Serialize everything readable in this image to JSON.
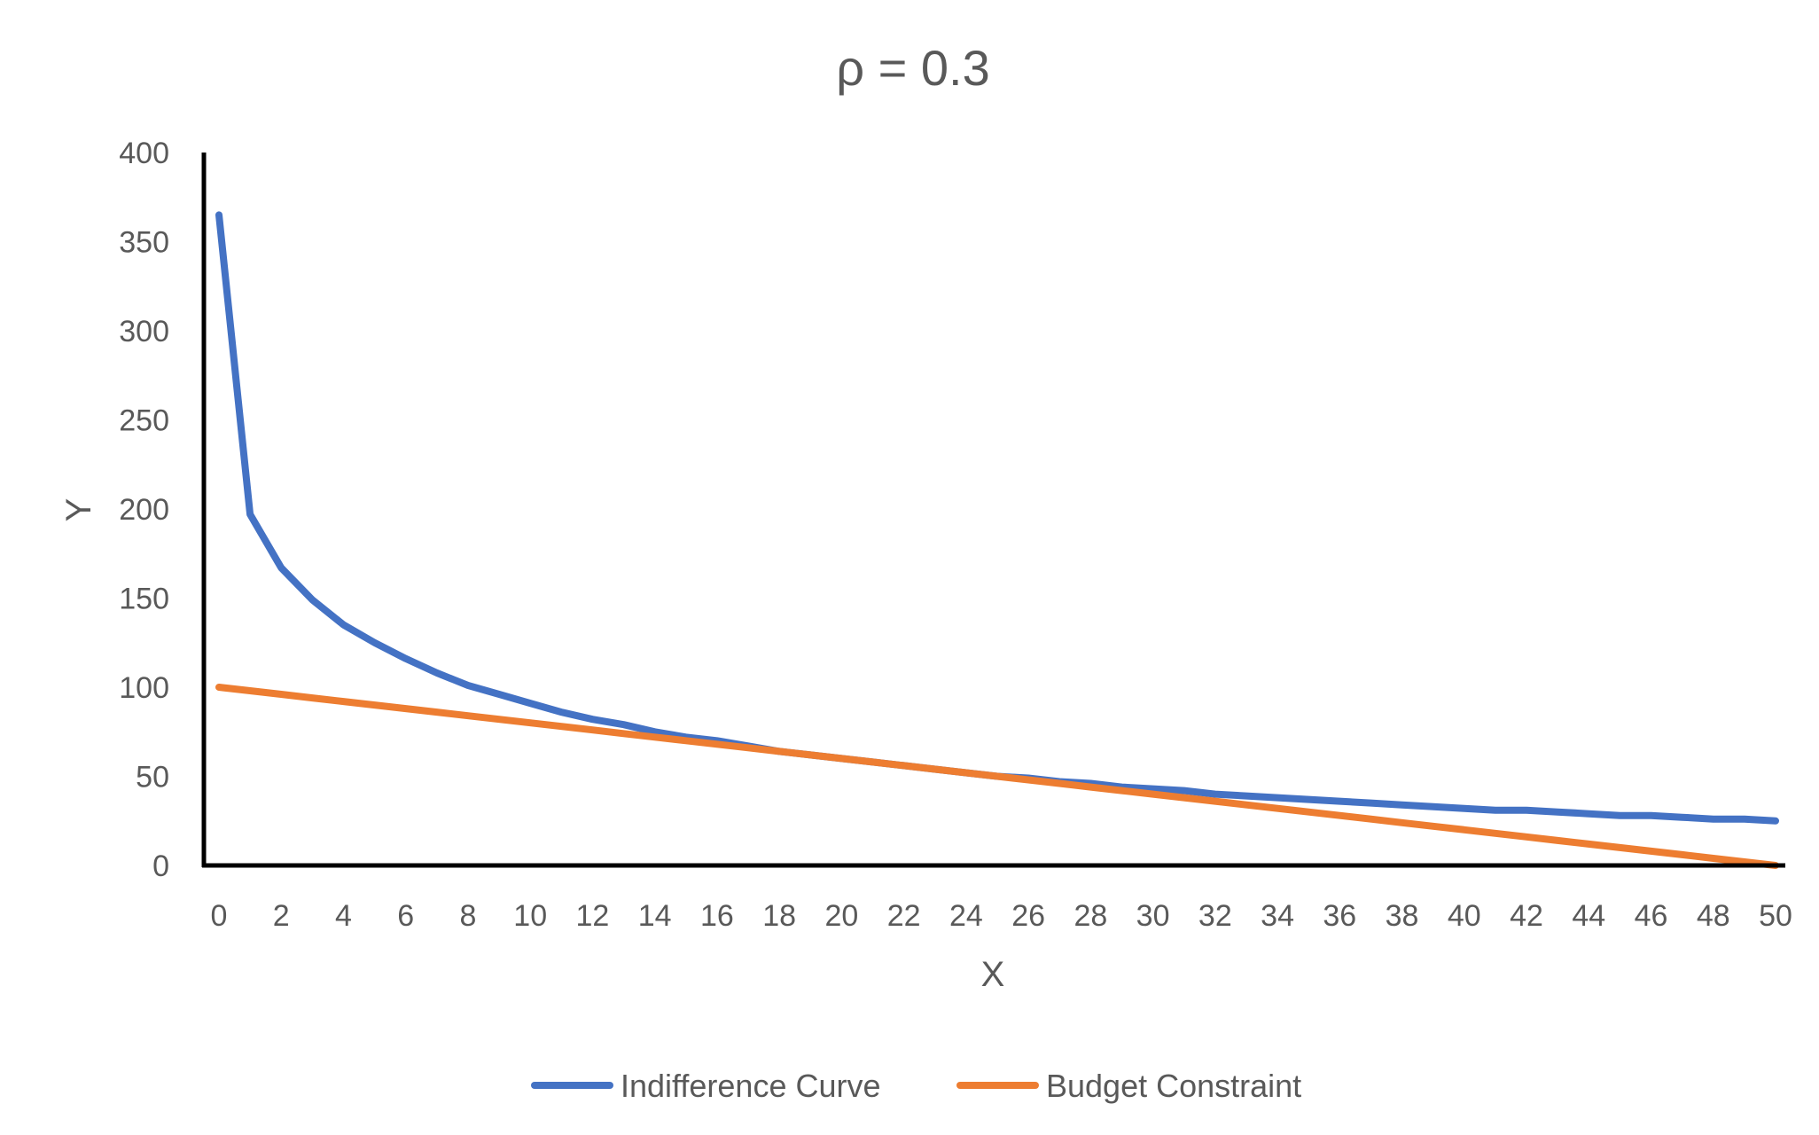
{
  "chart_data": {
    "type": "line",
    "title": "ρ = 0.3",
    "xlabel": "X",
    "ylabel": "Y",
    "xlim": [
      0,
      50
    ],
    "ylim": [
      0,
      400
    ],
    "x_ticks": [
      "0",
      "2",
      "4",
      "6",
      "8",
      "10",
      "12",
      "14",
      "16",
      "18",
      "20",
      "22",
      "24",
      "26",
      "28",
      "30",
      "32",
      "34",
      "36",
      "38",
      "40",
      "42",
      "44",
      "46",
      "48",
      "50"
    ],
    "y_ticks": [
      "0",
      "50",
      "100",
      "150",
      "200",
      "250",
      "300",
      "350",
      "400"
    ],
    "grid": false,
    "legend_position": "bottom",
    "x": [
      0,
      1,
      2,
      3,
      4,
      5,
      6,
      7,
      8,
      9,
      10,
      11,
      12,
      13,
      14,
      15,
      16,
      17,
      18,
      19,
      20,
      21,
      22,
      23,
      24,
      25,
      26,
      27,
      28,
      29,
      30,
      31,
      32,
      33,
      34,
      35,
      36,
      37,
      38,
      39,
      40,
      41,
      42,
      43,
      44,
      45,
      46,
      47,
      48,
      49,
      50
    ],
    "series": [
      {
        "name": "Indifference Curve",
        "color": "#4472C4",
        "values": [
          365,
          197,
          167,
          149,
          135,
          125,
          116,
          108,
          101,
          96,
          91,
          86,
          82,
          79,
          75,
          72,
          70,
          67,
          64,
          62,
          60,
          58,
          56,
          54,
          52,
          50,
          49,
          47,
          46,
          44,
          43,
          42,
          40,
          39,
          38,
          37,
          36,
          35,
          34,
          33,
          32,
          31,
          31,
          30,
          29,
          28,
          28,
          27,
          26,
          26,
          25
        ]
      },
      {
        "name": "Budget Constraint",
        "color": "#ED7D31",
        "values": [
          100,
          98,
          96,
          94,
          92,
          90,
          88,
          86,
          84,
          82,
          80,
          78,
          76,
          74,
          72,
          70,
          68,
          66,
          64,
          62,
          60,
          58,
          56,
          54,
          52,
          50,
          48,
          46,
          44,
          42,
          40,
          38,
          36,
          34,
          32,
          30,
          28,
          26,
          24,
          22,
          20,
          18,
          16,
          14,
          12,
          10,
          8,
          6,
          4,
          2,
          0
        ]
      }
    ]
  }
}
